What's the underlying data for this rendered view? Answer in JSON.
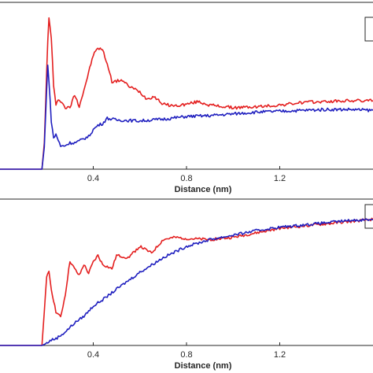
{
  "chart_data": [
    {
      "type": "line",
      "xlabel": "Distance (nm)",
      "ylabel": "",
      "title": "",
      "xlim": [
        0,
        1.6
      ],
      "ylim": [
        0,
        1.9
      ],
      "xticks": [
        0.4,
        0.8,
        1.2
      ],
      "xtick_labels": [
        "0.4",
        "0.8",
        "1.2"
      ],
      "grid": false,
      "legend_placement": "top-right",
      "series": [
        {
          "color": "#e41f1f",
          "x": [
            0.0,
            0.18,
            0.19,
            0.2,
            0.205,
            0.21,
            0.22,
            0.23,
            0.24,
            0.25,
            0.26,
            0.28,
            0.3,
            0.32,
            0.34,
            0.36,
            0.38,
            0.4,
            0.42,
            0.44,
            0.46,
            0.48,
            0.5,
            0.52,
            0.55,
            0.6,
            0.63,
            0.66,
            0.7,
            0.75,
            0.8,
            0.85,
            0.9,
            1.0,
            1.1,
            1.2,
            1.3,
            1.4,
            1.5,
            1.6
          ],
          "y": [
            0.0,
            0.0,
            0.3,
            1.1,
            1.45,
            1.72,
            1.5,
            0.95,
            0.72,
            0.8,
            0.78,
            0.7,
            0.7,
            0.85,
            0.72,
            0.9,
            1.1,
            1.3,
            1.38,
            1.36,
            1.2,
            1.0,
            1.0,
            1.02,
            0.95,
            0.88,
            0.8,
            0.83,
            0.74,
            0.72,
            0.74,
            0.77,
            0.73,
            0.7,
            0.71,
            0.73,
            0.76,
            0.77,
            0.78,
            0.78
          ]
        },
        {
          "color": "#1f1fbf",
          "x": [
            0.0,
            0.18,
            0.19,
            0.2,
            0.205,
            0.21,
            0.22,
            0.23,
            0.24,
            0.26,
            0.28,
            0.3,
            0.32,
            0.34,
            0.36,
            0.38,
            0.4,
            0.42,
            0.44,
            0.46,
            0.5,
            0.6,
            0.7,
            0.8,
            0.9,
            1.0,
            1.1,
            1.2,
            1.3,
            1.4,
            1.5,
            1.6
          ],
          "y": [
            0.0,
            0.0,
            0.25,
            0.9,
            1.2,
            1.0,
            0.55,
            0.35,
            0.4,
            0.26,
            0.27,
            0.3,
            0.3,
            0.32,
            0.35,
            0.37,
            0.45,
            0.5,
            0.52,
            0.58,
            0.56,
            0.55,
            0.57,
            0.6,
            0.61,
            0.63,
            0.65,
            0.66,
            0.67,
            0.68,
            0.68,
            0.67
          ]
        }
      ]
    },
    {
      "type": "line",
      "xlabel": "Distance (nm)",
      "ylabel": "",
      "title": "",
      "xlim": [
        0,
        1.6
      ],
      "ylim": [
        0,
        1.3
      ],
      "xticks": [
        0.4,
        0.8,
        1.2
      ],
      "xtick_labels": [
        "0.4",
        "0.8",
        "1.2"
      ],
      "grid": false,
      "legend_placement": "top-right",
      "series": [
        {
          "color": "#e41f1f",
          "x": [
            0.0,
            0.18,
            0.19,
            0.2,
            0.21,
            0.22,
            0.24,
            0.26,
            0.28,
            0.3,
            0.32,
            0.34,
            0.36,
            0.38,
            0.4,
            0.42,
            0.44,
            0.48,
            0.5,
            0.55,
            0.6,
            0.65,
            0.7,
            0.75,
            0.8,
            0.9,
            1.0,
            1.1,
            1.2,
            1.3,
            1.4,
            1.5,
            1.6
          ],
          "y": [
            0.0,
            0.0,
            0.3,
            0.6,
            0.66,
            0.5,
            0.3,
            0.25,
            0.45,
            0.75,
            0.68,
            0.62,
            0.72,
            0.64,
            0.74,
            0.8,
            0.72,
            0.68,
            0.8,
            0.78,
            0.88,
            0.82,
            0.94,
            0.96,
            0.95,
            0.94,
            0.96,
            1.0,
            1.04,
            1.06,
            1.08,
            1.1,
            1.12
          ]
        },
        {
          "color": "#1f1fbf",
          "x": [
            0.0,
            0.18,
            0.2,
            0.22,
            0.24,
            0.28,
            0.32,
            0.36,
            0.4,
            0.45,
            0.5,
            0.6,
            0.7,
            0.8,
            0.9,
            1.0,
            1.1,
            1.2,
            1.3,
            1.4,
            1.5,
            1.6
          ],
          "y": [
            0.0,
            0.0,
            0.02,
            0.05,
            0.06,
            0.12,
            0.2,
            0.26,
            0.35,
            0.42,
            0.5,
            0.65,
            0.78,
            0.88,
            0.94,
            0.98,
            1.02,
            1.05,
            1.07,
            1.09,
            1.11,
            1.12
          ]
        }
      ]
    }
  ]
}
